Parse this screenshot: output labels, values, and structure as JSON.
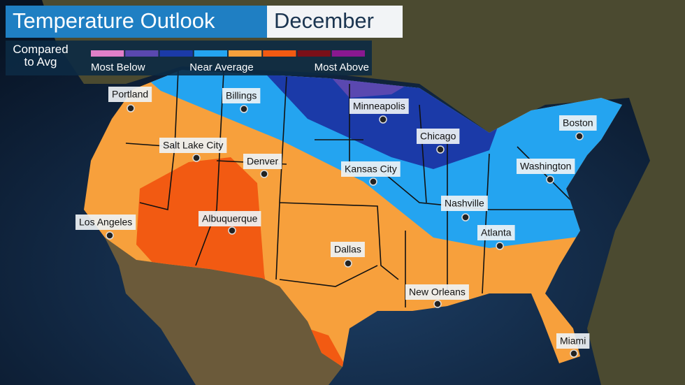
{
  "header": {
    "title": "Temperature Outlook",
    "month": "December"
  },
  "legend": {
    "title": "Compared to Avg",
    "labels": [
      "Most Below",
      "Near Average",
      "Most Above"
    ],
    "colors": [
      "#e07fc8",
      "#5a48b0",
      "#1b3aa8",
      "#24a4f0",
      "#f7a03c",
      "#f25a12",
      "#7a0f18",
      "#8a1890"
    ]
  },
  "cities": [
    "Portland",
    "Billings",
    "Minneapolis",
    "Chicago",
    "Boston",
    "Salt Lake City",
    "Denver",
    "Kansas City",
    "Washington",
    "Nashville",
    "Atlanta",
    "Los Angeles",
    "Albuquerque",
    "Dallas",
    "New Orleans",
    "Miami"
  ]
}
